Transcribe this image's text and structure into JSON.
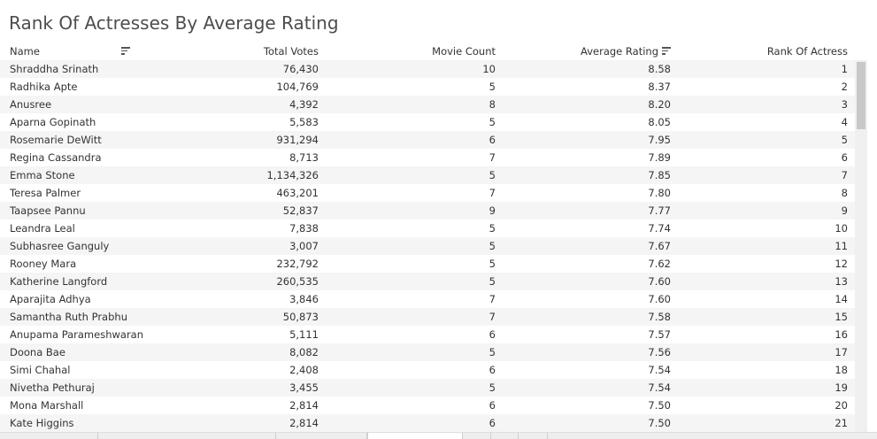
{
  "title": "Rank Of Actresses By Average Rating",
  "columns": {
    "name": "Name",
    "total_votes": "Total Votes",
    "movie_count": "Movie Count",
    "average_rating": "Average Rating",
    "rank": "Rank Of Actress"
  },
  "rows": [
    {
      "name": "Shraddha Srinath",
      "votes": "76,430",
      "count": "10",
      "rating": "8.58",
      "rank": "1"
    },
    {
      "name": "Radhika Apte",
      "votes": "104,769",
      "count": "5",
      "rating": "8.37",
      "rank": "2"
    },
    {
      "name": "Anusree",
      "votes": "4,392",
      "count": "8",
      "rating": "8.20",
      "rank": "3"
    },
    {
      "name": "Aparna Gopinath",
      "votes": "5,583",
      "count": "5",
      "rating": "8.05",
      "rank": "4"
    },
    {
      "name": "Rosemarie DeWitt",
      "votes": "931,294",
      "count": "6",
      "rating": "7.95",
      "rank": "5"
    },
    {
      "name": "Regina Cassandra",
      "votes": "8,713",
      "count": "7",
      "rating": "7.89",
      "rank": "6"
    },
    {
      "name": "Emma Stone",
      "votes": "1,134,326",
      "count": "5",
      "rating": "7.85",
      "rank": "7"
    },
    {
      "name": "Teresa Palmer",
      "votes": "463,201",
      "count": "7",
      "rating": "7.80",
      "rank": "8"
    },
    {
      "name": "Taapsee Pannu",
      "votes": "52,837",
      "count": "9",
      "rating": "7.77",
      "rank": "9"
    },
    {
      "name": "Leandra Leal",
      "votes": "7,838",
      "count": "5",
      "rating": "7.74",
      "rank": "10"
    },
    {
      "name": "Subhasree Ganguly",
      "votes": "3,007",
      "count": "5",
      "rating": "7.67",
      "rank": "11"
    },
    {
      "name": "Rooney Mara",
      "votes": "232,792",
      "count": "5",
      "rating": "7.62",
      "rank": "12"
    },
    {
      "name": "Katherine Langford",
      "votes": "260,535",
      "count": "5",
      "rating": "7.60",
      "rank": "13"
    },
    {
      "name": "Aparajita Adhya",
      "votes": "3,846",
      "count": "7",
      "rating": "7.60",
      "rank": "14"
    },
    {
      "name": "Samantha Ruth Prabhu",
      "votes": "50,873",
      "count": "7",
      "rating": "7.58",
      "rank": "15"
    },
    {
      "name": "Anupama Parameshwaran",
      "votes": "5,111",
      "count": "6",
      "rating": "7.57",
      "rank": "16"
    },
    {
      "name": "Doona Bae",
      "votes": "8,082",
      "count": "5",
      "rating": "7.56",
      "rank": "17"
    },
    {
      "name": "Simi Chahal",
      "votes": "2,408",
      "count": "6",
      "rating": "7.54",
      "rank": "18"
    },
    {
      "name": "Nivetha Pethuraj",
      "votes": "3,455",
      "count": "5",
      "rating": "7.54",
      "rank": "19"
    },
    {
      "name": "Mona Marshall",
      "votes": "2,814",
      "count": "6",
      "rating": "7.50",
      "rank": "20"
    },
    {
      "name": "Kate Higgins",
      "votes": "2,814",
      "count": "6",
      "rating": "7.50",
      "rank": "21"
    }
  ],
  "icons": {
    "name_sort": "sort-descending-icon",
    "rating_sort": "sort-descending-icon"
  }
}
